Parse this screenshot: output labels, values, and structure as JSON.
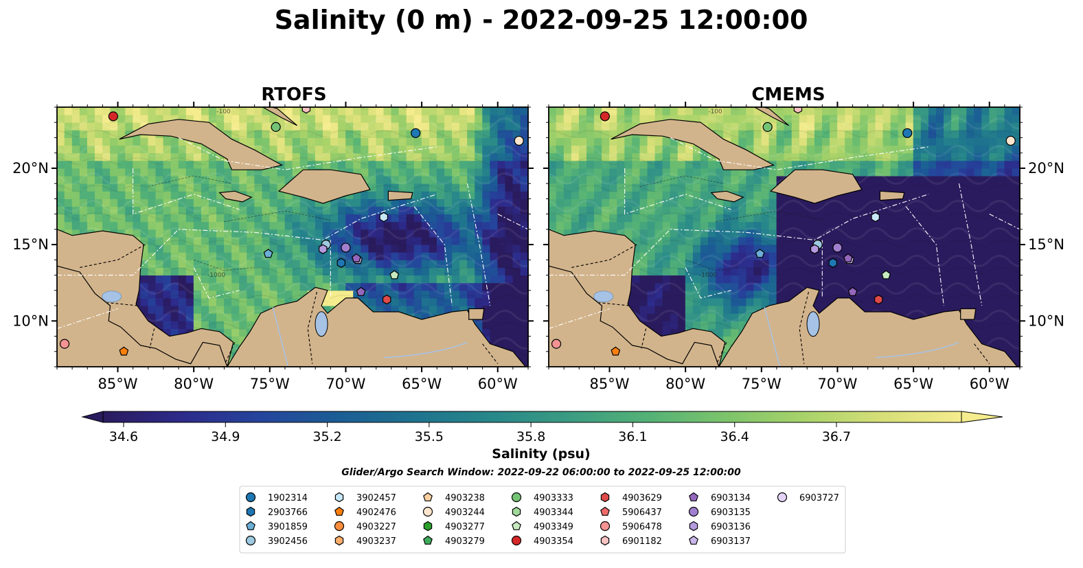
{
  "chart_data": {
    "type": "heatmap",
    "title": "Salinity (0 m) - 2022-09-25 12:00:00",
    "variable": "Salinity",
    "depth": "0 m",
    "datetime": "2022-09-25 12:00:00",
    "panels": [
      {
        "title": "RTOFS"
      },
      {
        "title": "CMEMS"
      }
    ],
    "map_extent": {
      "lon": [
        -89,
        -58
      ],
      "lat": [
        7,
        24
      ]
    },
    "x_ticks": [
      {
        "lon": -85,
        "label": "85°W"
      },
      {
        "lon": -80,
        "label": "80°W"
      },
      {
        "lon": -75,
        "label": "75°W"
      },
      {
        "lon": -70,
        "label": "70°W"
      },
      {
        "lon": -65,
        "label": "65°W"
      },
      {
        "lon": -60,
        "label": "60°W"
      }
    ],
    "y_ticks": [
      {
        "lat": 20,
        "label": "20°N"
      },
      {
        "lat": 15,
        "label": "15°N"
      },
      {
        "lat": 10,
        "label": "10°N"
      }
    ],
    "colorbar": {
      "label": "Salinity (psu)",
      "range": [
        34.6,
        36.7
      ],
      "extend": "both",
      "ticks": [
        "34.6",
        "34.9",
        "35.2",
        "35.5",
        "35.8",
        "36.1",
        "36.4",
        "36.7"
      ],
      "colormap": [
        "#2a1b5e",
        "#2d2a8a",
        "#25449c",
        "#1b5d95",
        "#1e738e",
        "#28888a",
        "#3b9c82",
        "#54b276",
        "#7dc46b",
        "#a9d36a",
        "#d7df78",
        "#f5ec8e"
      ]
    },
    "subtitle": "Glider/Argo Search Window: 2022-09-22 06:00:00 to 2022-09-25 12:00:00",
    "contour_labels": [
      "-100",
      "-1000"
    ],
    "legend": [
      {
        "id": "1902314",
        "color": "#1f77b4",
        "marker": "circle"
      },
      {
        "id": "2903766",
        "color": "#1f77b4",
        "marker": "hexagon"
      },
      {
        "id": "3901859",
        "color": "#6baed6",
        "marker": "pentagon"
      },
      {
        "id": "3902456",
        "color": "#9ecae1",
        "marker": "circle"
      },
      {
        "id": "3902457",
        "color": "#c6e7f7",
        "marker": "hexagon"
      },
      {
        "id": "4902476",
        "color": "#ff7f0e",
        "marker": "pentagon"
      },
      {
        "id": "4903227",
        "color": "#fd8d3c",
        "marker": "circle"
      },
      {
        "id": "4903237",
        "color": "#fdae6b",
        "marker": "hexagon"
      },
      {
        "id": "4903238",
        "color": "#fdd0a2",
        "marker": "pentagon"
      },
      {
        "id": "4903244",
        "color": "#fee6ce",
        "marker": "circle"
      },
      {
        "id": "4903277",
        "color": "#2ca02c",
        "marker": "hexagon"
      },
      {
        "id": "4903279",
        "color": "#41ab5d",
        "marker": "pentagon"
      },
      {
        "id": "4903333",
        "color": "#74c476",
        "marker": "circle"
      },
      {
        "id": "4903344",
        "color": "#a1d99b",
        "marker": "hexagon"
      },
      {
        "id": "4903349",
        "color": "#c7e9c0",
        "marker": "pentagon"
      },
      {
        "id": "4903354",
        "color": "#d62728",
        "marker": "circle"
      },
      {
        "id": "4903629",
        "color": "#de4a4a",
        "marker": "hexagon"
      },
      {
        "id": "5906437",
        "color": "#ef6b6b",
        "marker": "pentagon"
      },
      {
        "id": "5906478",
        "color": "#f49393",
        "marker": "circle"
      },
      {
        "id": "6901182",
        "color": "#f9c2c2",
        "marker": "hexagon"
      },
      {
        "id": "6903134",
        "color": "#9467bd",
        "marker": "pentagon"
      },
      {
        "id": "6903135",
        "color": "#a07fcf",
        "marker": "circle"
      },
      {
        "id": "6903136",
        "color": "#b49ade",
        "marker": "hexagon"
      },
      {
        "id": "6903137",
        "color": "#c9b6ea",
        "marker": "pentagon"
      },
      {
        "id": "6903727",
        "color": "#e3d3f5",
        "marker": "circle"
      }
    ],
    "platforms": [
      {
        "lon": -85.3,
        "lat": 23.4,
        "color": "#d62728",
        "marker": "circle"
      },
      {
        "lon": -72.6,
        "lat": 23.9,
        "color": "#f9c2c2",
        "marker": "hexagon"
      },
      {
        "lon": -74.6,
        "lat": 22.7,
        "color": "#74c476",
        "marker": "circle"
      },
      {
        "lon": -65.4,
        "lat": 22.3,
        "color": "#1f77b4",
        "marker": "circle"
      },
      {
        "lon": -58.6,
        "lat": 21.8,
        "color": "#fee6ce",
        "marker": "circle"
      },
      {
        "lon": -67.5,
        "lat": 16.8,
        "color": "#c6e7f7",
        "marker": "hexagon"
      },
      {
        "lon": -71.3,
        "lat": 15.0,
        "color": "#9ecae1",
        "marker": "circle"
      },
      {
        "lon": -75.1,
        "lat": 14.4,
        "color": "#6baed6",
        "marker": "pentagon"
      },
      {
        "lon": -71.5,
        "lat": 14.7,
        "color": "#b49ade",
        "marker": "hexagon"
      },
      {
        "lon": -70.0,
        "lat": 14.8,
        "color": "#a07fcf",
        "marker": "circle"
      },
      {
        "lon": -70.3,
        "lat": 13.8,
        "color": "#1f77b4",
        "marker": "hexagon"
      },
      {
        "lon": -69.2,
        "lat": 14.0,
        "color": "#c9b6ea",
        "marker": "pentagon"
      },
      {
        "lon": -69.3,
        "lat": 14.1,
        "color": "#9467bd",
        "marker": "pentagon"
      },
      {
        "lon": -66.8,
        "lat": 13.0,
        "color": "#c7e9c0",
        "marker": "pentagon"
      },
      {
        "lon": -69.0,
        "lat": 11.9,
        "color": "#9467bd",
        "marker": "pentagon"
      },
      {
        "lon": -67.3,
        "lat": 11.4,
        "color": "#de4a4a",
        "marker": "hexagon"
      },
      {
        "lon": -88.5,
        "lat": 8.5,
        "color": "#f49393",
        "marker": "circle"
      },
      {
        "lon": -84.6,
        "lat": 8.0,
        "color": "#ff7f0e",
        "marker": "pentagon"
      }
    ]
  }
}
